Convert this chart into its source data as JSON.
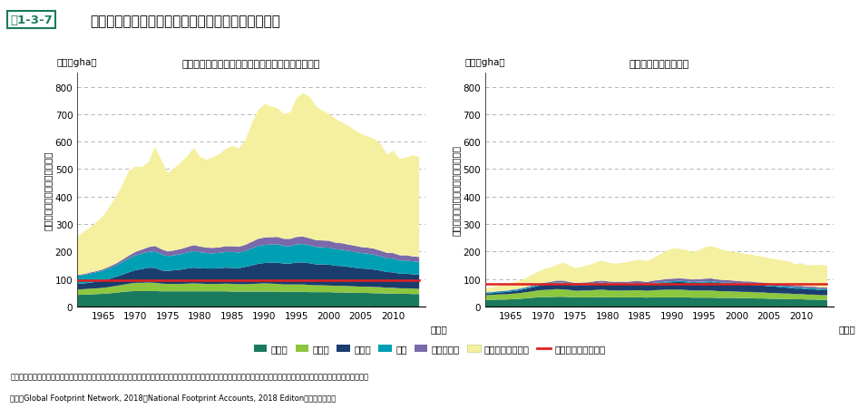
{
  "title_box": "図1-3-7",
  "title_main": "日本の消費にかかるエコロジカル・フットプリント",
  "left_chart_title": "日本の消費にかかるエコロジカル・フットプリント",
  "right_chart_title": "うち海外からの輸入分",
  "ylabel_left": "エコロジカル・フットプリント",
  "ylabel_right": "輸入エコロジカル・フットプリント",
  "unit_label": "（百万gha）",
  "note1": "注：我が国の輸入分も含めた資源消費量を、それぞれ「耕作地」「牧草地」「森林地」「漁場」「生産阻害地」「二酸化炭素吸収地」として土地面積に換算して計算したもの。",
  "note2": "資料：Global Footprint Network, 2018；National Footprint Accounts, 2018 Editonより環境省作成",
  "legend_labels": [
    "耕作地",
    "牧草地",
    "森林地",
    "漁場",
    "生産阻害地",
    "二酸化炭素吸収地",
    "バイオキャパシティ"
  ],
  "colors": {
    "cropland": "#1a7a5e",
    "grazing": "#8dc63f",
    "forest": "#1a3d6e",
    "fishing": "#00a0b4",
    "buildup": "#7a6aaa",
    "carbon": "#f5f0a0",
    "biocap": "#e02020"
  },
  "years": [
    1961,
    1962,
    1963,
    1964,
    1965,
    1966,
    1967,
    1968,
    1969,
    1970,
    1971,
    1972,
    1973,
    1974,
    1975,
    1976,
    1977,
    1978,
    1979,
    1980,
    1981,
    1982,
    1983,
    1984,
    1985,
    1986,
    1987,
    1988,
    1989,
    1990,
    1991,
    1992,
    1993,
    1994,
    1995,
    1996,
    1997,
    1998,
    1999,
    2000,
    2001,
    2002,
    2003,
    2004,
    2005,
    2006,
    2007,
    2008,
    2009,
    2010,
    2011,
    2012,
    2013,
    2014
  ],
  "left": {
    "cropland": [
      44,
      45,
      46,
      47,
      48,
      50,
      52,
      55,
      57,
      58,
      58,
      58,
      58,
      57,
      57,
      57,
      57,
      57,
      57,
      57,
      57,
      57,
      57,
      57,
      56,
      56,
      56,
      56,
      56,
      56,
      56,
      56,
      55,
      55,
      55,
      55,
      54,
      54,
      54,
      54,
      53,
      53,
      52,
      52,
      51,
      51,
      50,
      50,
      49,
      49,
      48,
      48,
      47,
      47
    ],
    "grazing": [
      20,
      20,
      21,
      21,
      22,
      23,
      25,
      26,
      28,
      30,
      30,
      31,
      30,
      28,
      27,
      27,
      27,
      28,
      29,
      28,
      27,
      27,
      27,
      28,
      28,
      27,
      27,
      28,
      29,
      30,
      29,
      28,
      27,
      27,
      27,
      27,
      26,
      25,
      25,
      24,
      24,
      24,
      24,
      23,
      23,
      23,
      23,
      22,
      21,
      21,
      20,
      20,
      20,
      19
    ],
    "forest": [
      20,
      21,
      22,
      24,
      26,
      30,
      33,
      37,
      42,
      46,
      50,
      54,
      54,
      48,
      47,
      50,
      52,
      55,
      57,
      56,
      56,
      56,
      57,
      58,
      58,
      58,
      63,
      67,
      72,
      74,
      76,
      77,
      76,
      76,
      80,
      80,
      79,
      76,
      76,
      76,
      73,
      72,
      70,
      68,
      66,
      65,
      63,
      60,
      57,
      56,
      53,
      53,
      52,
      51
    ],
    "fishing": [
      30,
      31,
      33,
      35,
      37,
      39,
      42,
      46,
      50,
      54,
      56,
      58,
      60,
      58,
      54,
      54,
      56,
      58,
      60,
      58,
      56,
      55,
      56,
      57,
      58,
      57,
      58,
      62,
      65,
      66,
      66,
      67,
      64,
      63,
      66,
      67,
      65,
      63,
      62,
      62,
      60,
      59,
      58,
      57,
      56,
      55,
      54,
      52,
      50,
      50,
      48,
      48,
      47,
      47
    ],
    "buildup": [
      3,
      3,
      4,
      4,
      5,
      6,
      7,
      9,
      11,
      13,
      15,
      17,
      20,
      19,
      17,
      18,
      19,
      20,
      22,
      21,
      20,
      20,
      20,
      21,
      21,
      21,
      22,
      24,
      26,
      27,
      27,
      27,
      26,
      27,
      27,
      27,
      26,
      25,
      25,
      25,
      24,
      24,
      23,
      23,
      22,
      22,
      22,
      21,
      20,
      20,
      19,
      19,
      18,
      18
    ],
    "carbon": [
      140,
      155,
      165,
      180,
      195,
      220,
      245,
      275,
      310,
      310,
      300,
      310,
      360,
      325,
      285,
      300,
      315,
      330,
      355,
      325,
      320,
      330,
      340,
      355,
      365,
      358,
      380,
      430,
      468,
      485,
      476,
      468,
      454,
      460,
      506,
      522,
      514,
      488,
      472,
      462,
      450,
      440,
      432,
      420,
      412,
      404,
      400,
      388,
      358,
      372,
      350,
      356,
      368,
      364
    ],
    "biocap": [
      97,
      97,
      97,
      97,
      97,
      97,
      97,
      97,
      97,
      97,
      97,
      97,
      97,
      97,
      97,
      97,
      97,
      97,
      97,
      97,
      97,
      97,
      97,
      97,
      97,
      97,
      97,
      97,
      97,
      97,
      97,
      97,
      97,
      97,
      97,
      97,
      97,
      97,
      97,
      97,
      97,
      97,
      97,
      97,
      97,
      97,
      97,
      97,
      97,
      97,
      97,
      97,
      97,
      97
    ]
  },
  "right": {
    "cropland": [
      25,
      26,
      27,
      27,
      28,
      29,
      31,
      33,
      35,
      36,
      36,
      37,
      37,
      36,
      35,
      35,
      35,
      36,
      36,
      35,
      35,
      35,
      35,
      35,
      35,
      34,
      35,
      35,
      35,
      35,
      35,
      35,
      34,
      34,
      34,
      34,
      33,
      33,
      33,
      33,
      32,
      32,
      31,
      31,
      30,
      30,
      29,
      29,
      28,
      28,
      27,
      27,
      26,
      26
    ],
    "grazing": [
      18,
      18,
      19,
      19,
      20,
      21,
      22,
      23,
      25,
      26,
      27,
      28,
      27,
      26,
      24,
      25,
      25,
      26,
      27,
      26,
      25,
      25,
      25,
      26,
      26,
      25,
      26,
      27,
      28,
      28,
      28,
      27,
      26,
      26,
      26,
      26,
      25,
      24,
      24,
      23,
      23,
      23,
      22,
      22,
      21,
      21,
      20,
      20,
      19,
      19,
      18,
      18,
      17,
      17
    ],
    "forest": [
      6,
      6,
      7,
      8,
      9,
      10,
      12,
      14,
      16,
      18,
      19,
      21,
      21,
      19,
      18,
      19,
      20,
      21,
      22,
      21,
      21,
      21,
      21,
      22,
      22,
      21,
      23,
      24,
      26,
      27,
      28,
      28,
      27,
      28,
      29,
      30,
      29,
      28,
      27,
      27,
      26,
      26,
      25,
      25,
      24,
      23,
      22,
      21,
      20,
      20,
      19,
      19,
      18,
      18
    ],
    "fishing": [
      4,
      4,
      4,
      4,
      4,
      4,
      4,
      4,
      4,
      4,
      4,
      4,
      4,
      4,
      4,
      4,
      4,
      4,
      4,
      4,
      4,
      4,
      4,
      4,
      4,
      4,
      4,
      4,
      4,
      4,
      4,
      4,
      4,
      4,
      4,
      4,
      4,
      4,
      4,
      4,
      4,
      4,
      4,
      4,
      4,
      4,
      4,
      4,
      4,
      4,
      4,
      4,
      4,
      4
    ],
    "buildup": [
      1,
      1,
      1,
      1,
      2,
      2,
      2,
      3,
      3,
      4,
      5,
      6,
      7,
      6,
      6,
      6,
      6,
      7,
      7,
      7,
      7,
      7,
      7,
      7,
      7,
      7,
      8,
      8,
      9,
      9,
      9,
      9,
      9,
      9,
      10,
      10,
      9,
      9,
      9,
      8,
      8,
      8,
      8,
      7,
      7,
      7,
      7,
      7,
      6,
      6,
      6,
      6,
      6,
      6
    ],
    "carbon": [
      15,
      17,
      19,
      21,
      24,
      27,
      32,
      38,
      44,
      50,
      52,
      57,
      65,
      60,
      54,
      58,
      62,
      67,
      73,
      68,
      66,
      68,
      72,
      75,
      78,
      76,
      82,
      93,
      102,
      110,
      108,
      105,
      101,
      105,
      114,
      118,
      114,
      108,
      105,
      104,
      100,
      98,
      97,
      94,
      91,
      89,
      88,
      85,
      79,
      82,
      77,
      79,
      82,
      80
    ],
    "biocap": [
      82,
      82,
      82,
      82,
      82,
      82,
      82,
      82,
      82,
      82,
      82,
      82,
      82,
      82,
      82,
      82,
      82,
      82,
      82,
      82,
      82,
      82,
      82,
      82,
      82,
      82,
      82,
      82,
      82,
      82,
      82,
      82,
      82,
      82,
      82,
      82,
      82,
      82,
      82,
      82,
      82,
      82,
      82,
      82,
      82,
      82,
      82,
      82,
      82,
      82,
      82,
      82,
      82,
      82
    ]
  },
  "xlim": [
    1961,
    2015
  ],
  "ylim": [
    0,
    850
  ],
  "yticks": [
    0,
    100,
    200,
    300,
    400,
    500,
    600,
    700,
    800
  ],
  "xticks": [
    1965,
    1970,
    1975,
    1980,
    1985,
    1990,
    1995,
    2000,
    2005,
    2010
  ]
}
